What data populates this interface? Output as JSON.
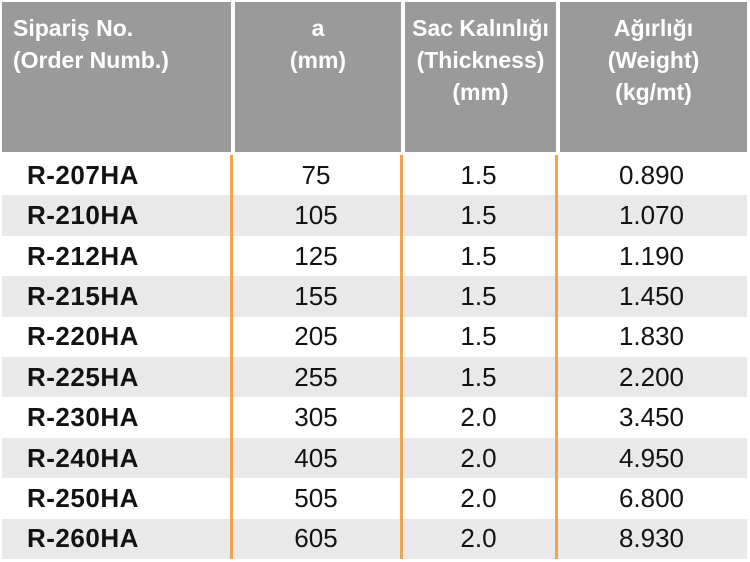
{
  "colors": {
    "header_bg": "#9a9a9a",
    "header_text": "#ffffff",
    "row_alt_bg": "#e9e9e9",
    "divider": "#f0a44e",
    "body_text": "#121212"
  },
  "table": {
    "columns": [
      {
        "lines": [
          "Sipariş No.",
          "(Order Numb.)"
        ]
      },
      {
        "lines": [
          "a",
          "(mm)"
        ]
      },
      {
        "lines": [
          "Sac Kalınlığı",
          "(Thickness)",
          "(mm)"
        ]
      },
      {
        "lines": [
          "Ağırlığı",
          "(Weight)",
          "(kg/mt)"
        ]
      }
    ],
    "rows": [
      {
        "order_no": "R-207HA",
        "a_mm": "75",
        "thickness_mm": "1.5",
        "weight_kg_mt": "0.890"
      },
      {
        "order_no": "R-210HA",
        "a_mm": "105",
        "thickness_mm": "1.5",
        "weight_kg_mt": "1.070"
      },
      {
        "order_no": "R-212HA",
        "a_mm": "125",
        "thickness_mm": "1.5",
        "weight_kg_mt": "1.190"
      },
      {
        "order_no": "R-215HA",
        "a_mm": "155",
        "thickness_mm": "1.5",
        "weight_kg_mt": "1.450"
      },
      {
        "order_no": "R-220HA",
        "a_mm": "205",
        "thickness_mm": "1.5",
        "weight_kg_mt": "1.830"
      },
      {
        "order_no": "R-225HA",
        "a_mm": "255",
        "thickness_mm": "1.5",
        "weight_kg_mt": "2.200"
      },
      {
        "order_no": "R-230HA",
        "a_mm": "305",
        "thickness_mm": "2.0",
        "weight_kg_mt": "3.450"
      },
      {
        "order_no": "R-240HA",
        "a_mm": "405",
        "thickness_mm": "2.0",
        "weight_kg_mt": "4.950"
      },
      {
        "order_no": "R-250HA",
        "a_mm": "505",
        "thickness_mm": "2.0",
        "weight_kg_mt": "6.800"
      },
      {
        "order_no": "R-260HA",
        "a_mm": "605",
        "thickness_mm": "2.0",
        "weight_kg_mt": "8.930"
      }
    ]
  },
  "chart_data": {
    "type": "table",
    "title": "",
    "columns": [
      "Sipariş No. (Order Numb.)",
      "a (mm)",
      "Sac Kalınlığı (Thickness) (mm)",
      "Ağırlığı (Weight) (kg/mt)"
    ],
    "rows": [
      [
        "R-207HA",
        75,
        1.5,
        0.89
      ],
      [
        "R-210HA",
        105,
        1.5,
        1.07
      ],
      [
        "R-212HA",
        125,
        1.5,
        1.19
      ],
      [
        "R-215HA",
        155,
        1.5,
        1.45
      ],
      [
        "R-220HA",
        205,
        1.5,
        1.83
      ],
      [
        "R-225HA",
        255,
        1.5,
        2.2
      ],
      [
        "R-230HA",
        305,
        2.0,
        3.45
      ],
      [
        "R-240HA",
        405,
        2.0,
        4.95
      ],
      [
        "R-250HA",
        505,
        2.0,
        6.8
      ],
      [
        "R-260HA",
        605,
        2.0,
        8.93
      ]
    ]
  }
}
